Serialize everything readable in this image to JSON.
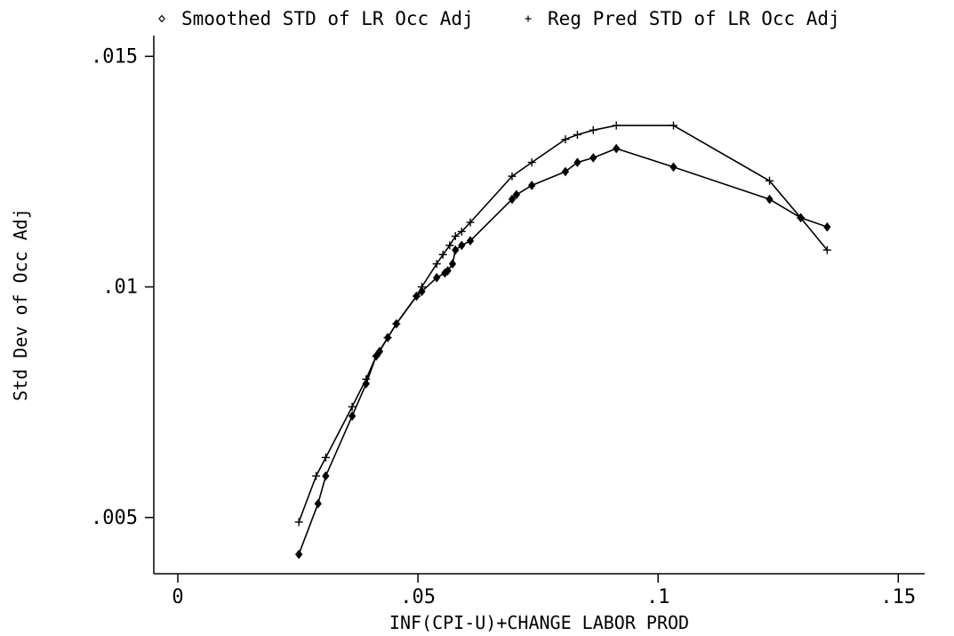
{
  "chart_data": {
    "type": "line",
    "xlabel": "INF(CPI-U)+CHANGE LABOR PROD",
    "ylabel": "Std Dev of Occ Adj",
    "xlim": [
      -0.005,
      0.1555
    ],
    "ylim": [
      0.00378,
      0.01545
    ],
    "x_ticks": [
      0,
      0.05,
      0.1,
      0.15
    ],
    "x_tick_labels": [
      "0",
      ".05",
      ".1",
      ".15"
    ],
    "y_ticks": [
      0.005,
      0.01,
      0.015
    ],
    "y_tick_labels": [
      ".005",
      ".01",
      ".015"
    ],
    "grid": false,
    "legend_position": "top",
    "series": [
      {
        "name": "Smoothed STD of LR Occ Adj",
        "marker": "diamond",
        "x": [
          0.0252,
          0.0292,
          0.0308,
          0.0363,
          0.0392,
          0.0413,
          0.042,
          0.0437,
          0.0455,
          0.0497,
          0.0508,
          0.0539,
          0.0556,
          0.0562,
          0.0572,
          0.0578,
          0.0591,
          0.0609,
          0.0696,
          0.0705,
          0.0737,
          0.0807,
          0.0832,
          0.0865,
          0.0913,
          0.1032,
          0.1232,
          0.1297,
          0.1352
        ],
        "y": [
          0.0042,
          0.0053,
          0.0059,
          0.0072,
          0.0079,
          0.0085,
          0.0086,
          0.0089,
          0.0092,
          0.0098,
          0.0099,
          0.0102,
          0.0103,
          0.01035,
          0.0105,
          0.0108,
          0.0109,
          0.011,
          0.0119,
          0.012,
          0.0122,
          0.0125,
          0.0127,
          0.0128,
          0.013,
          0.0126,
          0.0119,
          0.0115,
          0.0113
        ]
      },
      {
        "name": "Reg Pred STD of LR Occ Adj",
        "marker": "plus",
        "x": [
          0.0252,
          0.0288,
          0.0308,
          0.0363,
          0.0392,
          0.0413,
          0.0437,
          0.0455,
          0.0497,
          0.0508,
          0.0539,
          0.0552,
          0.0566,
          0.0578,
          0.0591,
          0.0609,
          0.0696,
          0.0737,
          0.0807,
          0.0832,
          0.0865,
          0.0913,
          0.1032,
          0.1232,
          0.1297,
          0.1352
        ],
        "y": [
          0.0049,
          0.0059,
          0.0063,
          0.0074,
          0.008,
          0.0085,
          0.0089,
          0.0092,
          0.0098,
          0.01,
          0.0105,
          0.0107,
          0.0109,
          0.0111,
          0.0112,
          0.0114,
          0.0124,
          0.0127,
          0.0132,
          0.0133,
          0.0134,
          0.0135,
          0.0135,
          0.0123,
          0.0115,
          0.0108
        ]
      }
    ]
  }
}
